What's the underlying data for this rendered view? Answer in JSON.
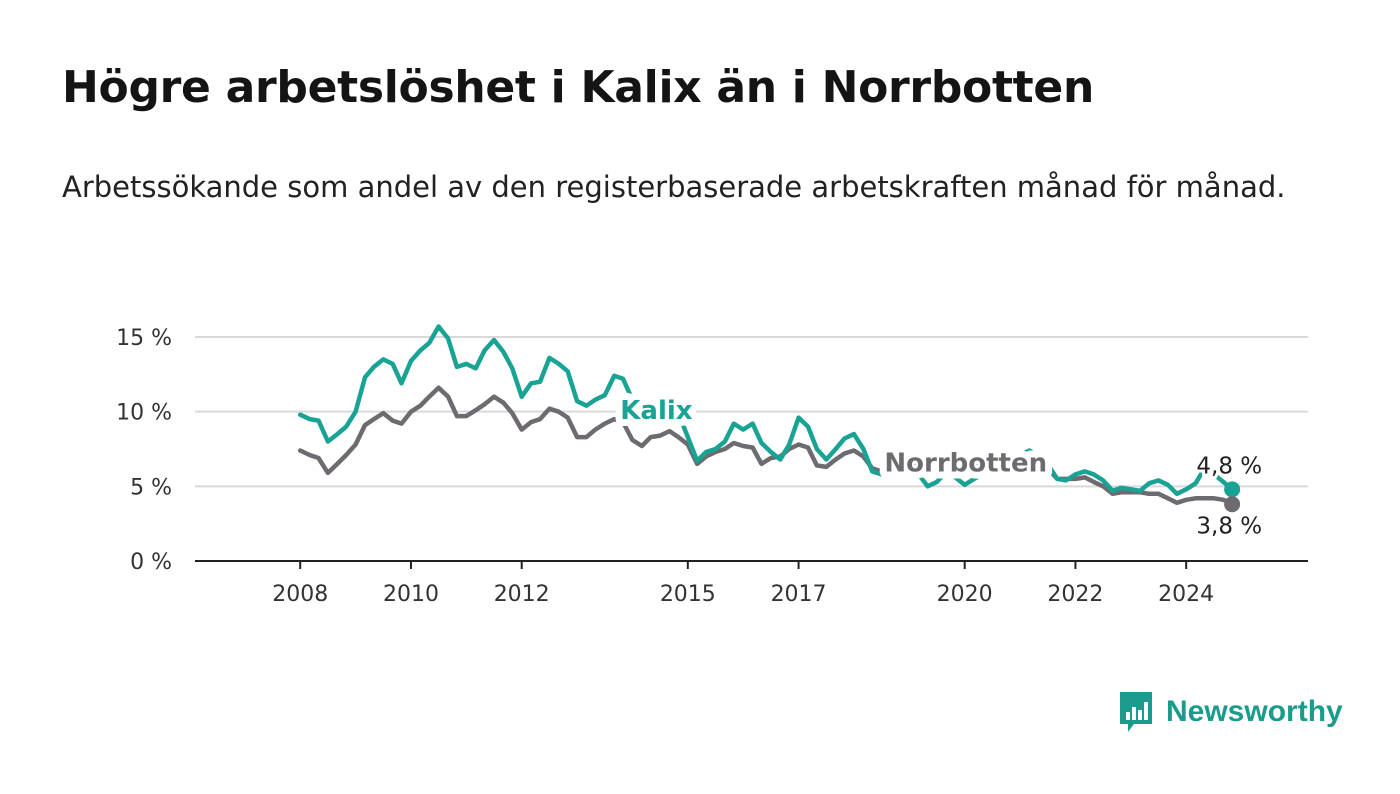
{
  "title": "Högre arbetslöshet i Kalix än i Norrbotten",
  "subtitle": "Arbetssökande som andel av den registerbaserade arbetskraften månad för månad.",
  "brand": {
    "name": "Newsworthy",
    "color": "#1a9b8c"
  },
  "colors": {
    "kalix": "#18a394",
    "norrbotten": "#6d6a70",
    "grid": "#d9d9d9",
    "axis": "#222222"
  },
  "chart_data": {
    "type": "line",
    "title": "Högre arbetslöshet i Kalix än i Norrbotten",
    "subtitle": "Arbetssökande som andel av den registerbaserade arbetskraften månad för månad.",
    "ylim": [
      0,
      15
    ],
    "y_ticks": [
      0,
      5,
      10,
      15
    ],
    "y_tick_labels": [
      "0 %",
      "5 %",
      "10 %",
      "15 %"
    ],
    "x_ticks": [
      2008,
      2010,
      2012,
      2015,
      2017,
      2020,
      2022,
      2024
    ],
    "x_tick_labels": [
      "2008",
      "2010",
      "2012",
      "2015",
      "2017",
      "2020",
      "2022",
      "2024"
    ],
    "grid": true,
    "series": [
      {
        "name": "Kalix",
        "color": "#18a394",
        "end_label": "4,8 %",
        "points": [
          [
            2008.0,
            9.8
          ],
          [
            2008.17,
            9.5
          ],
          [
            2008.33,
            9.4
          ],
          [
            2008.5,
            8.0
          ],
          [
            2008.67,
            8.5
          ],
          [
            2008.83,
            9.0
          ],
          [
            2009.0,
            10.0
          ],
          [
            2009.17,
            12.3
          ],
          [
            2009.33,
            13.0
          ],
          [
            2009.5,
            13.5
          ],
          [
            2009.67,
            13.2
          ],
          [
            2009.83,
            11.9
          ],
          [
            2010.0,
            13.4
          ],
          [
            2010.17,
            14.1
          ],
          [
            2010.33,
            14.6
          ],
          [
            2010.5,
            15.7
          ],
          [
            2010.67,
            14.9
          ],
          [
            2010.83,
            13.0
          ],
          [
            2011.0,
            13.2
          ],
          [
            2011.17,
            12.9
          ],
          [
            2011.33,
            14.1
          ],
          [
            2011.5,
            14.8
          ],
          [
            2011.67,
            14.0
          ],
          [
            2011.83,
            12.9
          ],
          [
            2012.0,
            11.0
          ],
          [
            2012.17,
            11.9
          ],
          [
            2012.33,
            12.0
          ],
          [
            2012.5,
            13.6
          ],
          [
            2012.67,
            13.2
          ],
          [
            2012.83,
            12.7
          ],
          [
            2013.0,
            10.7
          ],
          [
            2013.17,
            10.4
          ],
          [
            2013.33,
            10.8
          ],
          [
            2013.5,
            11.1
          ],
          [
            2013.67,
            12.4
          ],
          [
            2013.83,
            12.2
          ],
          [
            2014.0,
            10.8
          ],
          [
            2014.17,
            10.0
          ],
          [
            2014.33,
            10.4
          ],
          [
            2014.5,
            10.8
          ],
          [
            2014.67,
            10.7
          ],
          [
            2014.83,
            9.9
          ],
          [
            2015.0,
            8.3
          ],
          [
            2015.17,
            6.7
          ],
          [
            2015.33,
            7.3
          ],
          [
            2015.5,
            7.5
          ],
          [
            2015.67,
            8.0
          ],
          [
            2015.83,
            9.2
          ],
          [
            2016.0,
            8.8
          ],
          [
            2016.17,
            9.2
          ],
          [
            2016.33,
            7.9
          ],
          [
            2016.5,
            7.3
          ],
          [
            2016.67,
            6.8
          ],
          [
            2016.83,
            7.8
          ],
          [
            2017.0,
            9.6
          ],
          [
            2017.17,
            9.0
          ],
          [
            2017.33,
            7.5
          ],
          [
            2017.5,
            6.8
          ],
          [
            2017.67,
            7.5
          ],
          [
            2017.83,
            8.2
          ],
          [
            2018.0,
            8.5
          ],
          [
            2018.17,
            7.5
          ],
          [
            2018.33,
            6.0
          ],
          [
            2018.5,
            5.8
          ],
          [
            2018.67,
            6.0
          ],
          [
            2018.83,
            6.1
          ],
          [
            2019.0,
            6.2
          ],
          [
            2019.17,
            5.8
          ],
          [
            2019.33,
            5.0
          ],
          [
            2019.5,
            5.3
          ],
          [
            2019.67,
            6.0
          ],
          [
            2019.83,
            5.6
          ],
          [
            2020.0,
            5.1
          ],
          [
            2020.17,
            5.5
          ],
          [
            2020.33,
            5.8
          ],
          [
            2020.5,
            6.1
          ],
          [
            2020.67,
            6.6
          ],
          [
            2020.83,
            6.7
          ],
          [
            2021.0,
            7.1
          ],
          [
            2021.17,
            7.4
          ],
          [
            2021.33,
            7.0
          ],
          [
            2021.5,
            6.5
          ],
          [
            2021.67,
            5.5
          ],
          [
            2021.83,
            5.4
          ],
          [
            2022.0,
            5.8
          ],
          [
            2022.17,
            6.0
          ],
          [
            2022.33,
            5.8
          ],
          [
            2022.5,
            5.4
          ],
          [
            2022.67,
            4.7
          ],
          [
            2022.83,
            4.9
          ],
          [
            2023.0,
            4.8
          ],
          [
            2023.17,
            4.7
          ],
          [
            2023.33,
            5.2
          ],
          [
            2023.5,
            5.4
          ],
          [
            2023.67,
            5.1
          ],
          [
            2023.83,
            4.5
          ],
          [
            2024.0,
            4.8
          ],
          [
            2024.17,
            5.2
          ],
          [
            2024.33,
            6.2
          ],
          [
            2024.5,
            5.8
          ],
          [
            2024.67,
            5.3
          ],
          [
            2024.83,
            4.8
          ]
        ]
      },
      {
        "name": "Norrbotten",
        "color": "#6d6a70",
        "end_label": "3,8 %",
        "points": [
          [
            2008.0,
            7.4
          ],
          [
            2008.17,
            7.1
          ],
          [
            2008.33,
            6.9
          ],
          [
            2008.5,
            5.9
          ],
          [
            2008.67,
            6.5
          ],
          [
            2008.83,
            7.1
          ],
          [
            2009.0,
            7.8
          ],
          [
            2009.17,
            9.1
          ],
          [
            2009.33,
            9.5
          ],
          [
            2009.5,
            9.9
          ],
          [
            2009.67,
            9.4
          ],
          [
            2009.83,
            9.2
          ],
          [
            2010.0,
            10.0
          ],
          [
            2010.17,
            10.4
          ],
          [
            2010.33,
            11.0
          ],
          [
            2010.5,
            11.6
          ],
          [
            2010.67,
            11.0
          ],
          [
            2010.83,
            9.7
          ],
          [
            2011.0,
            9.7
          ],
          [
            2011.17,
            10.1
          ],
          [
            2011.33,
            10.5
          ],
          [
            2011.5,
            11.0
          ],
          [
            2011.67,
            10.6
          ],
          [
            2011.83,
            9.9
          ],
          [
            2012.0,
            8.8
          ],
          [
            2012.17,
            9.3
          ],
          [
            2012.33,
            9.5
          ],
          [
            2012.5,
            10.2
          ],
          [
            2012.67,
            10.0
          ],
          [
            2012.83,
            9.6
          ],
          [
            2013.0,
            8.3
          ],
          [
            2013.17,
            8.3
          ],
          [
            2013.33,
            8.8
          ],
          [
            2013.5,
            9.2
          ],
          [
            2013.67,
            9.5
          ],
          [
            2013.83,
            9.3
          ],
          [
            2014.0,
            8.1
          ],
          [
            2014.17,
            7.7
          ],
          [
            2014.33,
            8.3
          ],
          [
            2014.5,
            8.4
          ],
          [
            2014.67,
            8.7
          ],
          [
            2014.83,
            8.3
          ],
          [
            2015.0,
            7.8
          ],
          [
            2015.17,
            6.5
          ],
          [
            2015.33,
            7.0
          ],
          [
            2015.5,
            7.3
          ],
          [
            2015.67,
            7.5
          ],
          [
            2015.83,
            7.9
          ],
          [
            2016.0,
            7.7
          ],
          [
            2016.17,
            7.6
          ],
          [
            2016.33,
            6.5
          ],
          [
            2016.5,
            6.9
          ],
          [
            2016.67,
            7.0
          ],
          [
            2016.83,
            7.5
          ],
          [
            2017.0,
            7.8
          ],
          [
            2017.17,
            7.6
          ],
          [
            2017.33,
            6.4
          ],
          [
            2017.5,
            6.3
          ],
          [
            2017.67,
            6.8
          ],
          [
            2017.83,
            7.2
          ],
          [
            2018.0,
            7.4
          ],
          [
            2018.17,
            7.0
          ],
          [
            2018.33,
            6.2
          ],
          [
            2018.5,
            6.0
          ],
          [
            2018.67,
            6.2
          ],
          [
            2018.83,
            6.4
          ],
          [
            2019.0,
            6.6
          ],
          [
            2019.17,
            6.3
          ],
          [
            2019.33,
            5.8
          ],
          [
            2019.5,
            5.9
          ],
          [
            2019.67,
            6.2
          ],
          [
            2019.83,
            6.1
          ],
          [
            2020.0,
            5.9
          ],
          [
            2020.17,
            6.3
          ],
          [
            2020.33,
            6.6
          ],
          [
            2020.5,
            6.8
          ],
          [
            2020.67,
            6.8
          ],
          [
            2020.83,
            6.9
          ],
          [
            2021.0,
            6.8
          ],
          [
            2021.17,
            7.0
          ],
          [
            2021.33,
            6.8
          ],
          [
            2021.5,
            6.2
          ],
          [
            2021.67,
            5.5
          ],
          [
            2021.83,
            5.5
          ],
          [
            2022.0,
            5.5
          ],
          [
            2022.17,
            5.6
          ],
          [
            2022.33,
            5.3
          ],
          [
            2022.5,
            5.0
          ],
          [
            2022.67,
            4.5
          ],
          [
            2022.83,
            4.6
          ],
          [
            2023.0,
            4.6
          ],
          [
            2023.17,
            4.6
          ],
          [
            2023.33,
            4.5
          ],
          [
            2023.5,
            4.5
          ],
          [
            2023.67,
            4.2
          ],
          [
            2023.83,
            3.9
          ],
          [
            2024.0,
            4.1
          ],
          [
            2024.17,
            4.2
          ],
          [
            2024.33,
            4.2
          ],
          [
            2024.5,
            4.2
          ],
          [
            2024.67,
            4.1
          ],
          [
            2024.83,
            3.8
          ]
        ]
      }
    ]
  }
}
